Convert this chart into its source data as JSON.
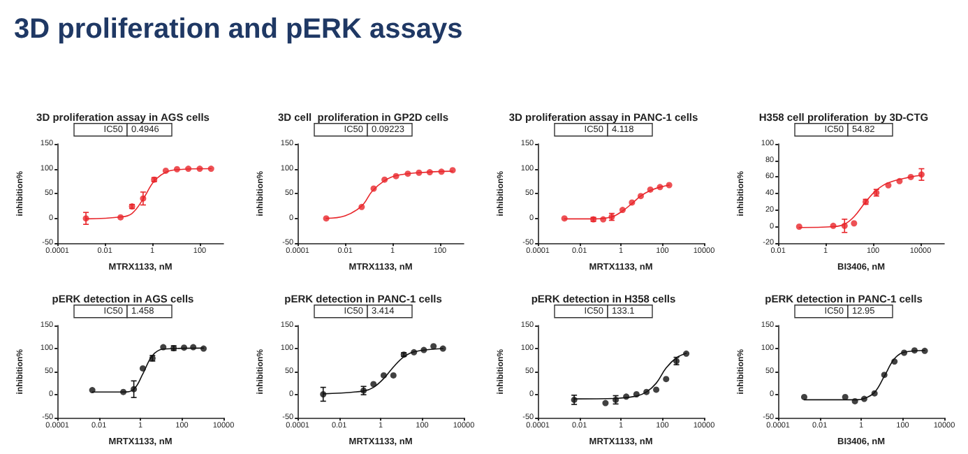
{
  "chart_data": [
    {
      "type": "other",
      "title": "3D proliferation and pERK assays"
    },
    {
      "type": "scatter",
      "title": "3D proliferation assay in AGS cells",
      "xlabel": "MTRX1133, nM",
      "ylabel": "inhibition%",
      "annotations": [
        "IC50",
        "0.4946"
      ],
      "log": "x",
      "xlim": [
        0.0001,
        1000
      ],
      "xticks": [
        0.0001,
        0.01,
        1,
        100
      ],
      "ylim": [
        -50,
        150
      ],
      "yticks": [
        -50,
        0,
        50,
        100,
        150
      ],
      "marker": "circle",
      "series": [
        {
          "type": "line",
          "marker": "none",
          "color": "#e8262b",
          "x": [
            0.0016,
            0.05,
            0.14,
            0.4,
            1.2,
            3.7,
            11,
            300
          ],
          "values": [
            -1,
            3,
            10,
            38,
            75,
            93,
            98,
            100
          ]
        },
        {
          "color": "#e8262b",
          "x": [
            0.0016,
            0.046,
            0.14,
            0.41,
            1.2,
            3.7,
            11,
            33,
            100,
            300
          ],
          "values": [
            0,
            2,
            24,
            40,
            78,
            96,
            99,
            100,
            100,
            100
          ],
          "errors": [
            12,
            null,
            4,
            13,
            4,
            null,
            null,
            null,
            null,
            null
          ]
        }
      ]
    },
    {
      "type": "scatter",
      "title": "3D cell  proliferation in GP2D cells",
      "xlabel": "MTRX1133, nM",
      "ylabel": "inhibition%",
      "annotations": [
        "IC50",
        "0.09223"
      ],
      "log": "x",
      "xlim": [
        0.0001,
        1000
      ],
      "xticks": [
        0.0001,
        0.01,
        1,
        100
      ],
      "ylim": [
        -50,
        150
      ],
      "yticks": [
        -50,
        0,
        50,
        100,
        150
      ],
      "marker": "circle",
      "series": [
        {
          "type": "line",
          "marker": "none",
          "color": "#e8262b",
          "x": [
            0.0016,
            0.01,
            0.05,
            0.14,
            0.46,
            1.4,
            13,
            340
          ],
          "values": [
            0,
            5,
            25,
            55,
            76,
            86,
            92,
            95
          ]
        },
        {
          "color": "#e8262b",
          "x": [
            0.0016,
            0.05,
            0.16,
            0.46,
            1.4,
            4.4,
            13,
            37,
            115,
            340
          ],
          "values": [
            0,
            23,
            60,
            78,
            85,
            90,
            92,
            93,
            94,
            97
          ]
        }
      ]
    },
    {
      "type": "scatter",
      "title": "3D proliferation assay in PANC-1 cells",
      "xlabel": "MRTX1133, nM",
      "ylabel": "inhibition%",
      "annotations": [
        "IC50",
        "4.118"
      ],
      "log": "x",
      "xlim": [
        0.0001,
        10000
      ],
      "xticks": [
        0.0001,
        0.01,
        1,
        100,
        10000
      ],
      "ylim": [
        -50,
        150
      ],
      "yticks": [
        -50,
        0,
        50,
        100,
        150
      ],
      "marker": "circle",
      "series": [
        {
          "type": "line",
          "marker": "none",
          "color": "#e8262b",
          "x": [
            0.0019,
            0.05,
            0.36,
            1.2,
            3.4,
            9,
            26,
            76,
            210
          ],
          "values": [
            -1,
            -1,
            3,
            15,
            30,
            45,
            56,
            63,
            67
          ]
        },
        {
          "color": "#e8262b",
          "x": [
            0.0019,
            0.047,
            0.14,
            0.36,
            1.2,
            3.4,
            9,
            26,
            76,
            210
          ],
          "values": [
            0,
            -2,
            -2,
            3,
            17,
            32,
            45,
            58,
            63,
            67
          ],
          "errors": [
            null,
            4,
            null,
            7,
            null,
            null,
            null,
            null,
            null,
            null
          ]
        }
      ]
    },
    {
      "type": "scatter",
      "title": "H358 cell proliferation  by 3D-CTG",
      "xlabel": "BI3406, nM",
      "ylabel": "inhibition%",
      "annotations": [
        "IC50",
        "54.82"
      ],
      "log": "x",
      "xlim": [
        0.01,
        100000
      ],
      "xticks": [
        0.01,
        1,
        100,
        10000
      ],
      "ylim": [
        -20,
        100
      ],
      "yticks": [
        -20,
        0,
        20,
        40,
        60,
        80,
        100
      ],
      "marker": "circle",
      "series": [
        {
          "type": "line",
          "marker": "none",
          "color": "#e8262b",
          "x": [
            0.077,
            2.1,
            6.3,
            15.8,
            49,
            138,
            440,
            3900,
            11000
          ],
          "values": [
            -1,
            0,
            3,
            12,
            30,
            44,
            53,
            60,
            62
          ]
        },
        {
          "color": "#e8262b",
          "x": [
            0.077,
            2.1,
            6.3,
            15.8,
            49,
            138,
            440,
            1300,
            3900,
            11000
          ],
          "values": [
            0,
            1,
            1,
            4,
            30,
            41,
            50,
            55,
            60,
            63
          ],
          "errors": [
            null,
            null,
            8,
            null,
            3,
            4,
            null,
            null,
            null,
            7
          ]
        }
      ]
    },
    {
      "type": "scatter",
      "title": "pERK detection in AGS cells",
      "xlabel": "MRTX1133, nM",
      "ylabel": "inhibition%",
      "annotations": [
        "IC50",
        "1.458"
      ],
      "log": "x",
      "xlim": [
        0.0001,
        10000
      ],
      "xticks": [
        0.0001,
        0.01,
        1,
        100,
        10000
      ],
      "ylim": [
        -50,
        150
      ],
      "yticks": [
        -50,
        0,
        50,
        100,
        150
      ],
      "marker": "circle",
      "series": [
        {
          "type": "line",
          "marker": "none",
          "color": "#111111",
          "x": [
            0.0048,
            0.15,
            0.48,
            1.3,
            3.8,
            12.6,
            1100
          ],
          "values": [
            6,
            6,
            12,
            45,
            85,
            99,
            101
          ]
        },
        {
          "color": "#111111",
          "x": [
            0.0048,
            0.15,
            0.48,
            1.3,
            3.8,
            12.6,
            40,
            126,
            350,
            1100
          ],
          "values": [
            10,
            6,
            12,
            57,
            79,
            103,
            101,
            102,
            103,
            100
          ],
          "errors": [
            null,
            null,
            18,
            null,
            6,
            null,
            5,
            null,
            null,
            null
          ]
        }
      ]
    },
    {
      "type": "scatter",
      "title": "pERK detection in PANC-1 cells",
      "xlabel": "MRTX1133, nM",
      "ylabel": "inhibition%",
      "annotations": [
        "IC50",
        "3.414"
      ],
      "log": "x",
      "xlim": [
        0.0001,
        10000
      ],
      "xticks": [
        0.0001,
        0.01,
        1,
        100,
        10000
      ],
      "ylim": [
        -50,
        150
      ],
      "yticks": [
        -50,
        0,
        50,
        100,
        150
      ],
      "marker": "circle",
      "series": [
        {
          "type": "line",
          "marker": "none",
          "color": "#111111",
          "x": [
            0.0017,
            0.15,
            0.45,
            1.4,
            4.1,
            13,
            40,
            1000
          ],
          "values": [
            2,
            8,
            16,
            35,
            60,
            82,
            93,
            100
          ]
        },
        {
          "color": "#111111",
          "x": [
            0.0017,
            0.15,
            0.45,
            1.4,
            4.1,
            13,
            40,
            120,
            350,
            1000
          ],
          "values": [
            1,
            9,
            23,
            42,
            42,
            87,
            92,
            97,
            105,
            100
          ],
          "errors": [
            15,
            9,
            null,
            null,
            null,
            4,
            null,
            null,
            null,
            null
          ]
        }
      ]
    },
    {
      "type": "scatter",
      "title": "pERK detection in H358 cells",
      "xlabel": "MRTX1133, nM",
      "ylabel": "inhibition%",
      "annotations": [
        "IC50",
        "133.1"
      ],
      "log": "x",
      "xlim": [
        0.0001,
        10000
      ],
      "xticks": [
        0.0001,
        0.01,
        1,
        100,
        10000
      ],
      "ylim": [
        -50,
        150
      ],
      "yticks": [
        -50,
        0,
        50,
        100,
        150
      ],
      "marker": "circle",
      "series": [
        {
          "type": "line",
          "marker": "none",
          "color": "#111111",
          "x": [
            0.0056,
            0.56,
            5.6,
            17,
            50,
            150,
            470,
            1400
          ],
          "values": [
            -9,
            -8,
            -3,
            6,
            25,
            58,
            80,
            90
          ]
        },
        {
          "color": "#111111",
          "x": [
            0.0056,
            0.18,
            0.56,
            1.8,
            5.6,
            17,
            50,
            150,
            470,
            1400
          ],
          "values": [
            -11,
            -18,
            -11,
            -4,
            1,
            6,
            11,
            34,
            73,
            89
          ],
          "errors": [
            10,
            null,
            9,
            null,
            null,
            null,
            null,
            null,
            8,
            null
          ]
        }
      ]
    },
    {
      "type": "scatter",
      "title": "pERK detection in PANC-1 cells",
      "xlabel": "BI3406, nM",
      "ylabel": "inhibition%",
      "annotations": [
        "IC50",
        "12.95"
      ],
      "log": "x",
      "xlim": [
        0.0001,
        10000
      ],
      "xticks": [
        0.0001,
        0.01,
        1,
        100,
        10000
      ],
      "ylim": [
        -50,
        150
      ],
      "yticks": [
        -50,
        0,
        50,
        100,
        150
      ],
      "marker": "circle",
      "series": [
        {
          "type": "line",
          "marker": "none",
          "color": "#111111",
          "x": [
            0.0018,
            0.5,
            1.4,
            4.4,
            13,
            40,
            117,
            1150
          ],
          "values": [
            -11,
            -11,
            -8,
            5,
            40,
            78,
            92,
            96
          ]
        },
        {
          "color": "#111111",
          "x": [
            0.0018,
            0.17,
            0.5,
            1.4,
            4.4,
            13,
            40,
            117,
            370,
            1150
          ],
          "values": [
            -5,
            -5,
            -14,
            -9,
            3,
            43,
            72,
            91,
            96,
            95
          ]
        }
      ]
    }
  ]
}
